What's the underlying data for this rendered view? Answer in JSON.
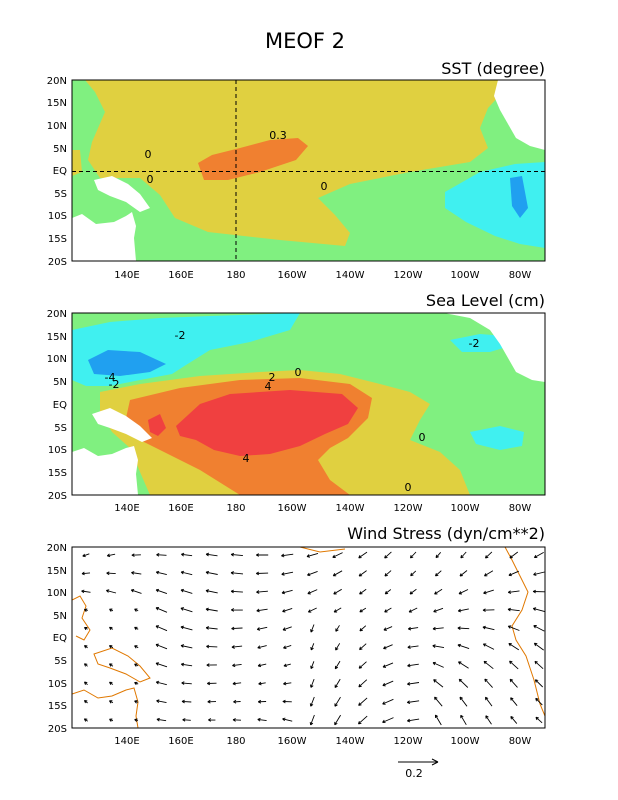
{
  "figure": {
    "title": "MEOF 2",
    "colors": {
      "light_green": "#80f080",
      "yellow": "#e0d040",
      "orange": "#f08030",
      "red": "#f04040",
      "cyan": "#40f0f0",
      "blue": "#20a0f0",
      "land": "#ffffff",
      "coast_black": "#000000",
      "coast_orange": "#e07800"
    }
  },
  "axes": {
    "lat_labels": [
      "20N",
      "15N",
      "10N",
      "5N",
      "EQ",
      "5S",
      "10S",
      "15S",
      "20S"
    ],
    "lon_labels": [
      "140E",
      "160E",
      "180",
      "160W",
      "140W",
      "120W",
      "100W",
      "80W"
    ]
  },
  "panels": [
    {
      "id": "sst",
      "title": "SST (degree)",
      "contour_labels": [
        "0.3",
        "0",
        "0",
        "0"
      ],
      "reference_lines": [
        "EQ",
        "180"
      ]
    },
    {
      "id": "sea_level",
      "title": "Sea Level (cm)",
      "contour_labels": [
        "-2",
        "-2",
        "-4",
        "-2",
        "2",
        "0",
        "4",
        "4",
        "0",
        "0"
      ]
    },
    {
      "id": "wind_stress",
      "title": "Wind Stress (dyn/cm**2)"
    }
  ],
  "wind_scale": {
    "label": "0.2",
    "value": 0.2
  }
}
